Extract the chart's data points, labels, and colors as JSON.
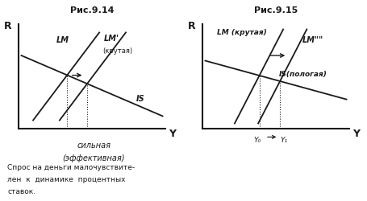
{
  "fig914_title": "Рис.9.14",
  "fig915_title": "Рис.9.15",
  "bottom_text1": "Спрос на деньги малочувствите-",
  "bottom_text2": "лен  к  динамике  процентных",
  "bottom_text3": "ставок.",
  "label_914_LM": "LM",
  "label_914_LMp": "LM'",
  "label_914_LMp_sub": "(крутая)",
  "label_914_IS": "IS",
  "label_914_bottom": "сильная",
  "label_914_bottom2": "(эффективная)",
  "label_915_LM": "LM (крутая)",
  "label_915_LMpp": "LM\"\"",
  "label_915_IS": "IS(пологая)",
  "label_915_Y0": "Y₀",
  "label_915_Y1": "Y₁",
  "bg_color": "#ffffff",
  "line_color": "#1a1a1a"
}
